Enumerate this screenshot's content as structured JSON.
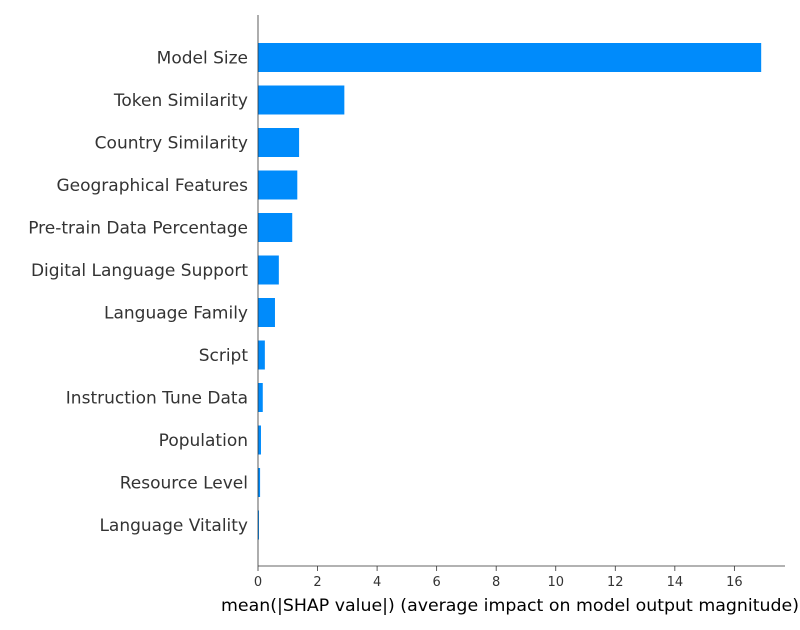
{
  "chart_data": {
    "type": "bar",
    "orientation": "horizontal",
    "categories": [
      "Model Size",
      "Token Similarity",
      "Country Similarity",
      "Geographical Features",
      "Pre-train Data Percentage",
      "Digital Language Support",
      "Language Family",
      "Script",
      "Instruction Tune Data",
      "Population",
      "Resource Level",
      "Language Vitality"
    ],
    "values": [
      16.9,
      2.9,
      1.38,
      1.32,
      1.15,
      0.7,
      0.57,
      0.23,
      0.16,
      0.1,
      0.07,
      0.02
    ],
    "xlabel": "mean(|SHAP value|) (average impact on model output magnitude)",
    "ylabel": "",
    "title": "",
    "xlim": [
      0,
      17.7
    ],
    "xticks": [
      0,
      2,
      4,
      6,
      8,
      10,
      12,
      14,
      16
    ],
    "grid": false,
    "legend": "none",
    "bar_color": "#008BFB",
    "axis_color": "#333333"
  }
}
